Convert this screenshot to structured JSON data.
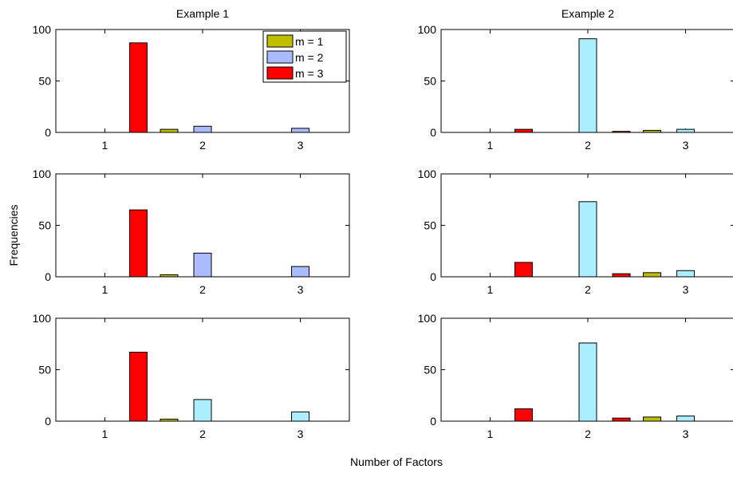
{
  "figure": {
    "xlabel": "Number of Factors",
    "ylabel": "Frequencies"
  },
  "chart_data": [
    {
      "type": "bar",
      "title": "Example 1",
      "categories": [
        "1",
        "2",
        "3"
      ],
      "ylim": [
        0,
        100
      ],
      "yticks": [
        0,
        50,
        100
      ],
      "legend": "top-right",
      "series": [
        {
          "name": "m = 1",
          "color": "#bfbf00",
          "values": [
            0,
            3,
            0
          ]
        },
        {
          "name": "m = 2",
          "color": "#aabbff",
          "values": [
            0,
            6,
            4
          ]
        },
        {
          "name": "m = 3",
          "color": "#ff0000",
          "values": [
            87,
            0,
            0
          ]
        }
      ]
    },
    {
      "type": "bar",
      "title": "Example 2",
      "categories": [
        "1",
        "2",
        "3"
      ],
      "ylim": [
        0,
        100
      ],
      "yticks": [
        0,
        50,
        100
      ],
      "series": [
        {
          "color": "#bfbf00",
          "values": [
            0,
            0,
            2
          ]
        },
        {
          "color": "#aaeeff",
          "values": [
            0,
            91,
            3
          ]
        },
        {
          "color": "#ff0000",
          "values": [
            3,
            1,
            0
          ]
        }
      ]
    },
    {
      "type": "bar",
      "title": "",
      "categories": [
        "1",
        "2",
        "3"
      ],
      "ylim": [
        0,
        100
      ],
      "yticks": [
        0,
        50,
        100
      ],
      "series": [
        {
          "color": "#bfbf00",
          "values": [
            0,
            2,
            0
          ]
        },
        {
          "color": "#aabbff",
          "values": [
            0,
            23,
            10
          ]
        },
        {
          "color": "#ff0000",
          "values": [
            65,
            0,
            0
          ]
        }
      ]
    },
    {
      "type": "bar",
      "title": "",
      "categories": [
        "1",
        "2",
        "3"
      ],
      "ylim": [
        0,
        100
      ],
      "yticks": [
        0,
        50,
        100
      ],
      "series": [
        {
          "color": "#bfbf00",
          "values": [
            0,
            0,
            4
          ]
        },
        {
          "color": "#aaeeff",
          "values": [
            0,
            73,
            6
          ]
        },
        {
          "color": "#ff0000",
          "values": [
            14,
            3,
            0
          ]
        }
      ]
    },
    {
      "type": "bar",
      "title": "",
      "categories": [
        "1",
        "2",
        "3"
      ],
      "ylim": [
        0,
        100
      ],
      "yticks": [
        0,
        50,
        100
      ],
      "series": [
        {
          "color": "#bfbf00",
          "values": [
            0,
            2,
            0
          ]
        },
        {
          "color": "#aaeeff",
          "values": [
            0,
            21,
            9
          ]
        },
        {
          "color": "#ff0000",
          "values": [
            67,
            0,
            0
          ]
        }
      ]
    },
    {
      "type": "bar",
      "title": "",
      "categories": [
        "1",
        "2",
        "3"
      ],
      "ylim": [
        0,
        100
      ],
      "yticks": [
        0,
        50,
        100
      ],
      "series": [
        {
          "color": "#bfbf00",
          "values": [
            0,
            0,
            4
          ]
        },
        {
          "color": "#aaeeff",
          "values": [
            0,
            76,
            5
          ]
        },
        {
          "color": "#ff0000",
          "values": [
            12,
            3,
            0
          ]
        }
      ]
    }
  ]
}
